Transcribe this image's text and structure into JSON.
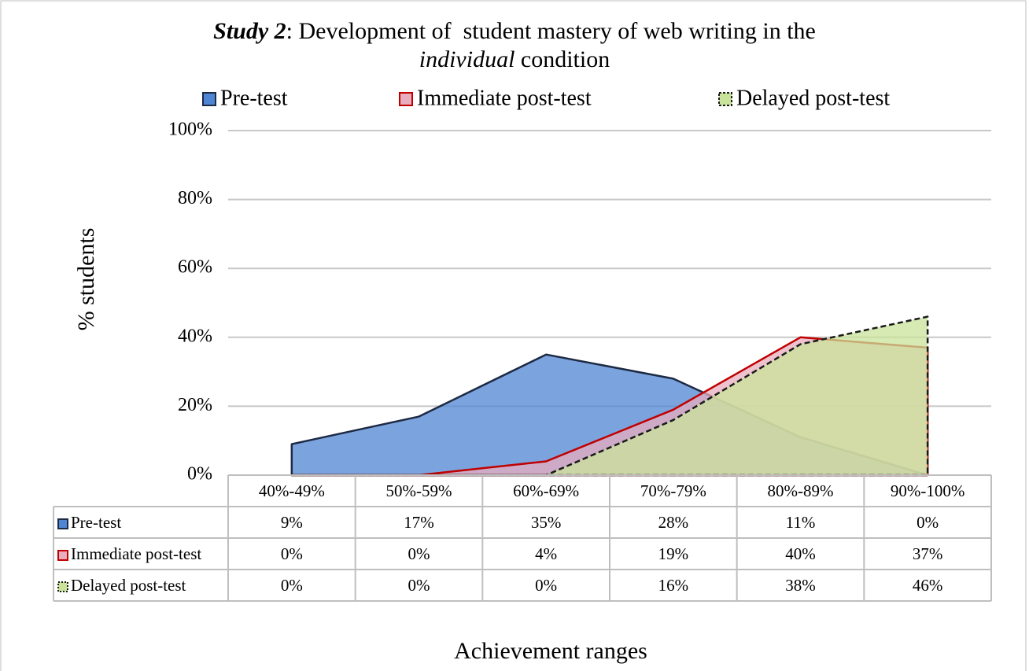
{
  "chart_data": {
    "type": "area",
    "title": [
      [
        {
          "text": "Study 2",
          "style": "bold-italic"
        },
        {
          "text": ": Development of  student mastery of web writing in the",
          "style": "normal"
        }
      ],
      [
        {
          "text": "individual",
          "style": "italic"
        },
        {
          "text": " condition",
          "style": "normal"
        }
      ]
    ],
    "x_label": "Achievement ranges",
    "y_label": "% students",
    "categories": [
      "40%-49%",
      "50%-59%",
      "60%-69%",
      "70%-79%",
      "80%-89%",
      "90%-100%"
    ],
    "series": [
      {
        "name": "Pre-test",
        "color": "#4f86d4",
        "stroke": "#1e2a44",
        "dash": false,
        "values": [
          9,
          17,
          35,
          28,
          11,
          0
        ],
        "value_labels": [
          "9%",
          "17%",
          "35%",
          "28%",
          "11%",
          "0%"
        ]
      },
      {
        "name": "Immediate post-test",
        "color": "#e8aebe",
        "stroke": "#c00000",
        "dash": false,
        "values": [
          0,
          0,
          4,
          19,
          40,
          37
        ],
        "value_labels": [
          "0%",
          "0%",
          "4%",
          "19%",
          "40%",
          "37%"
        ]
      },
      {
        "name": "Delayed post-test",
        "color": "#c9e39a",
        "stroke": "#1a1a1a",
        "dash": true,
        "values": [
          0,
          0,
          0,
          16,
          38,
          46
        ],
        "value_labels": [
          "0%",
          "0%",
          "0%",
          "16%",
          "38%",
          "46%"
        ]
      }
    ],
    "ylim": [
      0,
      100
    ],
    "yticks": [
      {
        "value": 0,
        "label": "0%"
      },
      {
        "value": 20,
        "label": "20%"
      },
      {
        "value": 40,
        "label": "40%"
      },
      {
        "value": 60,
        "label": "60%"
      },
      {
        "value": 80,
        "label": "80%"
      },
      {
        "value": 100,
        "label": "100%"
      }
    ],
    "grid": true,
    "legend": "top",
    "data_table": true
  }
}
